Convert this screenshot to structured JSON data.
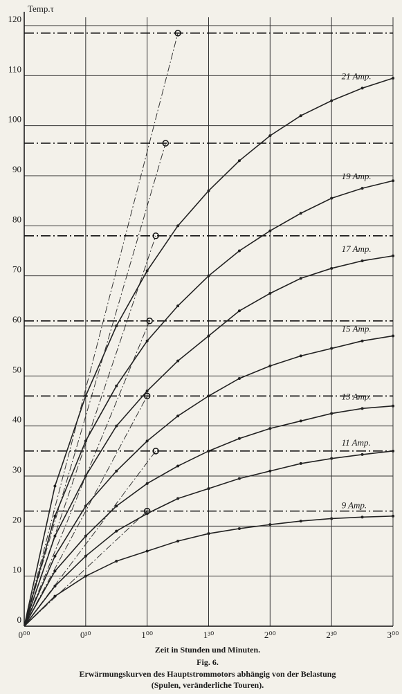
{
  "chart_data": {
    "type": "line",
    "y_label": "Temp.τ",
    "x_label": "Zeit in Stunden und Minuten.",
    "figure": "Fig. 6.",
    "title": "Erwärmungskurven des Hauptstrommotors abhängig von der Belastung",
    "subtitle": "(Spulen, veränderliche Touren).",
    "x": [
      0,
      0.25,
      0.5,
      0.75,
      1,
      1.25,
      1.5,
      1.75,
      2,
      2.25,
      2.5,
      2.75,
      3
    ],
    "series": [
      {
        "name": "21 Amp.",
        "color": "#222222",
        "values": [
          0,
          28,
          46,
          60,
          71,
          80,
          87,
          93,
          98,
          102,
          105,
          107.5,
          109.5
        ]
      },
      {
        "name": "19 Amp.",
        "color": "#222222",
        "values": [
          0,
          22,
          37,
          48,
          57,
          64,
          70,
          75,
          79,
          82.5,
          85.5,
          87.5,
          89
        ]
      },
      {
        "name": "17 Amp.",
        "color": "#222222",
        "values": [
          0,
          18,
          30,
          40,
          47,
          53,
          58,
          63,
          66.5,
          69.5,
          71.5,
          73,
          74
        ]
      },
      {
        "name": "15 Amp.",
        "color": "#222222",
        "values": [
          0,
          14,
          24,
          31,
          37,
          42,
          46,
          49.5,
          52,
          54,
          55.5,
          57,
          58
        ]
      },
      {
        "name": "13 Amp.",
        "color": "#222222",
        "values": [
          0,
          11,
          18,
          24,
          28.5,
          32,
          35,
          37.5,
          39.5,
          41,
          42.5,
          43.5,
          44
        ]
      },
      {
        "name": "11 Amp.",
        "color": "#222222",
        "values": [
          0,
          8,
          14,
          19,
          22.5,
          25.5,
          27.5,
          29.5,
          31,
          32.5,
          33.5,
          34.3,
          35
        ]
      },
      {
        "name": "9 Amp.",
        "color": "#222222",
        "values": [
          0,
          6,
          10,
          13,
          15,
          17,
          18.5,
          19.5,
          20.3,
          21,
          21.5,
          21.8,
          22
        ]
      }
    ],
    "asymptotes": [
      118.5,
      96.5,
      78,
      61,
      46,
      35,
      23
    ],
    "asymptote_marks_x": [
      1.25,
      1.15,
      1.07,
      1.02,
      1.0,
      1.07,
      1.0
    ],
    "xlim": [
      0,
      3
    ],
    "xticks": [
      {
        "value": 0,
        "label": "0⁰⁰"
      },
      {
        "value": 0.5,
        "label": "0³⁰"
      },
      {
        "value": 1,
        "label": "1⁰⁰"
      },
      {
        "value": 1.5,
        "label": "1³⁰"
      },
      {
        "value": 2,
        "label": "2⁰⁰"
      },
      {
        "value": 2.5,
        "label": "2³⁰"
      },
      {
        "value": 3,
        "label": "3⁰⁰"
      }
    ],
    "ylim": [
      0,
      120
    ],
    "yticks": [
      0,
      10,
      20,
      30,
      40,
      50,
      60,
      70,
      80,
      90,
      100,
      110,
      120
    ],
    "grid": true
  }
}
